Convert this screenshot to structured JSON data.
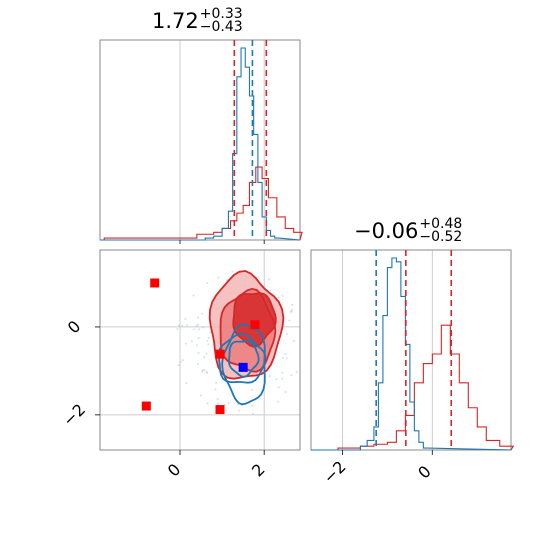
{
  "chart_data": [
    {
      "panel": "top-left",
      "type": "histogram",
      "title": {
        "value": "1.72",
        "plus": "+0.33",
        "minus": "−0.43"
      },
      "xlim": [
        -1.9,
        2.85
      ],
      "quantile_lines": {
        "blue": [
          1.72
        ],
        "red": [
          1.29,
          2.05
        ]
      },
      "series": [
        {
          "color": "#1f77b4",
          "bins": [
            0.6,
            0.8,
            1.0,
            1.15,
            1.25,
            1.35,
            1.45,
            1.55,
            1.65,
            1.75,
            1.85,
            1.95,
            2.05,
            2.15,
            2.25
          ],
          "counts": [
            1,
            2,
            6,
            15,
            45,
            85,
            100,
            90,
            75,
            55,
            30,
            12,
            5,
            2,
            1
          ]
        },
        {
          "color": "#d62728",
          "bins": [
            -1.8,
            -1.0,
            -0.2,
            0.4,
            0.8,
            1.0,
            1.2,
            1.35,
            1.5,
            1.65,
            1.8,
            1.95,
            2.1,
            2.3,
            2.5,
            2.7
          ],
          "counts": [
            1,
            1,
            1,
            3,
            4,
            6,
            10,
            14,
            18,
            30,
            38,
            32,
            22,
            12,
            6,
            4
          ]
        }
      ]
    },
    {
      "panel": "bottom-right",
      "type": "histogram",
      "title": {
        "value": "−0.06",
        "plus": "+0.48",
        "minus": "−0.52"
      },
      "xlim": [
        -2.7,
        1.75
      ],
      "xticks": [
        -2,
        0
      ],
      "xticklabels": [
        "−2",
        "0"
      ],
      "quantile_lines": {
        "blue": [
          -1.25
        ],
        "red": [
          -0.59,
          0.42
        ]
      },
      "series": [
        {
          "color": "#1f77b4",
          "bins": [
            -1.6,
            -1.45,
            -1.3,
            -1.2,
            -1.1,
            -1.0,
            -0.9,
            -0.8,
            -0.7,
            -0.6,
            -0.5,
            -0.4,
            -0.3,
            -0.2
          ],
          "counts": [
            2,
            5,
            12,
            35,
            70,
            95,
            100,
            98,
            80,
            55,
            25,
            10,
            4,
            1
          ]
        },
        {
          "color": "#d62728",
          "bins": [
            -2.1,
            -1.6,
            -1.3,
            -1.0,
            -0.8,
            -0.6,
            -0.4,
            -0.2,
            0.0,
            0.2,
            0.4,
            0.6,
            0.8,
            1.0,
            1.2,
            1.5
          ],
          "counts": [
            1,
            2,
            3,
            4,
            10,
            18,
            35,
            45,
            50,
            65,
            50,
            35,
            22,
            12,
            5,
            2
          ]
        }
      ]
    },
    {
      "panel": "bottom-left",
      "type": "scatter",
      "xlim": [
        -1.9,
        2.85
      ],
      "ylim": [
        -2.8,
        1.75
      ],
      "xticks": [
        0,
        2
      ],
      "xticklabels": [
        "0",
        "2"
      ],
      "yticks": [
        -2,
        0
      ],
      "yticklabels": [
        "−2",
        "0"
      ],
      "contours": [
        {
          "color": "#d62728",
          "filled": true,
          "levels": [
            {
              "center": [
                1.55,
                0.0
              ],
              "radii": [
                0.85,
                1.2
              ]
            },
            {
              "center": [
                1.6,
                -0.1
              ],
              "radii": [
                0.65,
                0.9
              ]
            },
            {
              "center": [
                1.75,
                0.2
              ],
              "radii": [
                0.5,
                0.6
              ]
            }
          ]
        },
        {
          "color": "#1f77b4",
          "filled": false,
          "levels": [
            {
              "center": [
                1.45,
                -0.75
              ],
              "radii": [
                0.55,
                0.55
              ]
            },
            {
              "center": [
                1.5,
                -0.7
              ],
              "radii": [
                0.35,
                0.4
              ]
            },
            {
              "center": [
                1.55,
                -0.85
              ],
              "radii": [
                0.5,
                0.9
              ]
            }
          ]
        }
      ],
      "markers": [
        {
          "x": -0.6,
          "y": 1.0,
          "color": "#ff0000"
        },
        {
          "x": 0.95,
          "y": -0.62,
          "color": "#ff0000"
        },
        {
          "x": 1.78,
          "y": 0.05,
          "color": "#ff0000"
        },
        {
          "x": -0.8,
          "y": -1.8,
          "color": "#ff0000"
        },
        {
          "x": 0.95,
          "y": -1.88,
          "color": "#ff0000"
        },
        {
          "x": 1.5,
          "y": -0.92,
          "color": "#0000ff"
        }
      ]
    }
  ]
}
